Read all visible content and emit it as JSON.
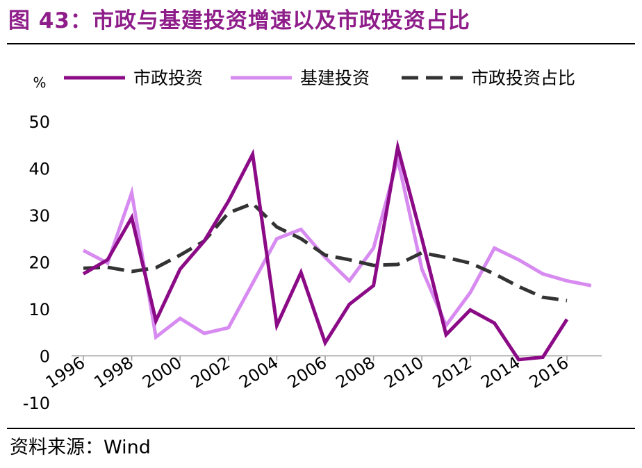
{
  "figure": {
    "title": "图 43：市政与基建投资增速以及市政投资占比",
    "source": "资料来源：Wind"
  },
  "chart_data": {
    "type": "line",
    "title": "",
    "xlabel": "",
    "ylabel": "%",
    "ylim": [
      -10,
      50
    ],
    "yticks": [
      -10,
      0,
      10,
      20,
      30,
      40,
      50
    ],
    "xticks": [
      "1996",
      "1998",
      "2000",
      "2002",
      "2004",
      "2006",
      "2008",
      "2010",
      "2012",
      "2014",
      "2016"
    ],
    "xlim": [
      1996,
      2017
    ],
    "grid": false,
    "legend_position": "top",
    "series": [
      {
        "name": "市政投资",
        "color": "#8b0a86",
        "style": "solid",
        "x": [
          1996,
          1997,
          1998,
          1999,
          2000,
          2001,
          2002,
          2003,
          2004,
          2005,
          2006,
          2007,
          2008,
          2009,
          2010,
          2011,
          2012,
          2013,
          2014,
          2015,
          2016
        ],
        "values": [
          17.5,
          20.5,
          29.5,
          7.5,
          18.5,
          24.5,
          33.0,
          43.0,
          6.5,
          17.8,
          2.8,
          11.0,
          15.0,
          44.5,
          25.0,
          4.5,
          9.8,
          7.0,
          -0.8,
          -0.3,
          7.8
        ]
      },
      {
        "name": "基建投资",
        "color": "#d78af0",
        "style": "solid",
        "x": [
          1996,
          1997,
          1998,
          1999,
          2000,
          2001,
          2002,
          2003,
          2004,
          2005,
          2006,
          2007,
          2008,
          2009,
          2010,
          2011,
          2012,
          2013,
          2014,
          2015,
          2016,
          2017
        ],
        "values": [
          22.5,
          19.8,
          34.8,
          4.0,
          8.0,
          4.8,
          6.0,
          15.5,
          25.0,
          27.0,
          21.0,
          16.0,
          23.0,
          42.0,
          18.5,
          6.5,
          13.5,
          23.0,
          20.5,
          17.5,
          16.0,
          15.0
        ]
      },
      {
        "name": "市政投资占比",
        "color": "#333333",
        "style": "dashed",
        "x": [
          1996,
          1997,
          1998,
          1999,
          2000,
          2001,
          2002,
          2003,
          2004,
          2005,
          2006,
          2007,
          2008,
          2009,
          2010,
          2011,
          2012,
          2013,
          2014,
          2015,
          2016
        ],
        "values": [
          18.7,
          18.9,
          18.0,
          18.8,
          21.5,
          24.5,
          30.5,
          32.5,
          27.5,
          25.0,
          21.5,
          20.5,
          19.3,
          19.5,
          22.0,
          21.0,
          19.8,
          17.5,
          14.8,
          12.5,
          11.8
        ]
      }
    ]
  }
}
